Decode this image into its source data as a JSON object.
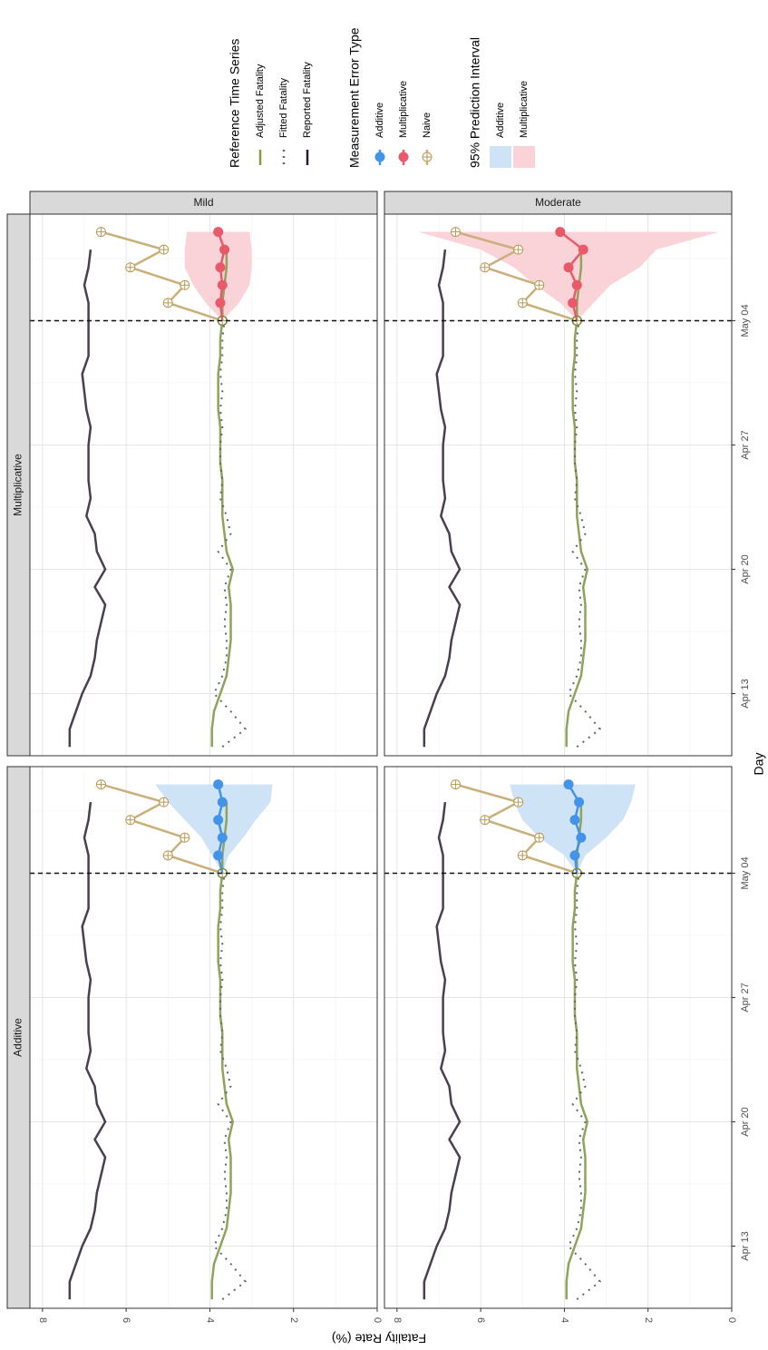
{
  "chart_data": {
    "type": "line",
    "orientation": "rotated-90-clockwise",
    "xlabel": "Day",
    "ylabel": "Fatality Rate (%)",
    "ylim": [
      0,
      8.3
    ],
    "yticks": [
      0,
      2,
      4,
      6,
      8
    ],
    "x_ticks": [
      {
        "label": "Apr 13",
        "day": 3
      },
      {
        "label": "Apr 20",
        "day": 10
      },
      {
        "label": "Apr 27",
        "day": 17
      },
      {
        "label": "May 04",
        "day": 24
      }
    ],
    "x_range_days": [
      0,
      28
    ],
    "cutoff_day": 24,
    "cutoff_label": "May 04",
    "grid": true,
    "column_strips": [
      "Additive",
      "Multiplicative"
    ],
    "row_strips": [
      "Mild",
      "Moderate"
    ],
    "legend": {
      "reference_title": "Reference Time Series",
      "reference_items": [
        {
          "name": "Adjusted Fatality",
          "color": "#8a9a40"
        },
        {
          "name": "Fitted Fatality",
          "color": "#5a6678"
        },
        {
          "name": "Reported Fatality",
          "color": "#2a1a2a"
        }
      ],
      "error_title": "Measurement Error Type",
      "error_items": [
        {
          "name": "Additive",
          "color": "#4393e8"
        },
        {
          "name": "Multiplicative",
          "color": "#e85a6a"
        },
        {
          "name": "Naive",
          "color": "#b89a58"
        }
      ],
      "interval_title": "95% Prediction Interval",
      "interval_items": [
        {
          "name": "Additive",
          "color": "#cfe3f7"
        },
        {
          "name": "Multiplicative",
          "color": "#f9d3d8"
        }
      ]
    },
    "series_shared": {
      "reported": {
        "x": [
          0,
          1,
          2,
          3,
          4,
          5,
          6,
          7,
          8,
          9,
          10,
          11,
          12,
          13,
          14,
          15,
          16,
          17,
          18,
          19,
          20,
          21,
          22,
          23,
          24,
          25,
          26,
          27,
          28
        ],
        "y": [
          7.35,
          7.35,
          7.2,
          7.05,
          6.85,
          6.75,
          6.7,
          6.6,
          6.5,
          6.75,
          6.5,
          6.7,
          6.75,
          6.95,
          6.85,
          6.9,
          6.9,
          6.9,
          6.85,
          6.95,
          7.0,
          7.05,
          6.9,
          6.9,
          6.9,
          6.9,
          7.0,
          6.9,
          6.85
        ]
      },
      "adjusted": {
        "x": [
          0,
          1,
          2,
          3,
          4,
          5,
          6,
          7,
          8,
          9,
          10,
          11,
          12,
          13,
          14,
          15,
          16,
          17,
          18,
          19,
          20,
          21,
          22,
          23,
          24,
          25,
          26,
          27,
          28
        ],
        "y": [
          3.95,
          3.95,
          3.9,
          3.75,
          3.6,
          3.55,
          3.5,
          3.5,
          3.5,
          3.55,
          3.45,
          3.6,
          3.65,
          3.7,
          3.7,
          3.7,
          3.75,
          3.75,
          3.75,
          3.8,
          3.8,
          3.8,
          3.75,
          3.75,
          3.7,
          3.7,
          3.65,
          3.6,
          3.6
        ]
      },
      "fitted": {
        "x": [
          0,
          1,
          2,
          3,
          4,
          5,
          6,
          7,
          8,
          9,
          10,
          11,
          12,
          13,
          14,
          15,
          16,
          17,
          18,
          19,
          20,
          21,
          22,
          23,
          24
        ],
        "y": [
          3.7,
          3.15,
          3.5,
          3.9,
          3.7,
          3.6,
          3.6,
          3.65,
          3.6,
          3.65,
          3.5,
          3.8,
          3.5,
          3.6,
          3.75,
          3.7,
          3.75,
          3.75,
          3.7,
          3.75,
          3.7,
          3.75,
          3.7,
          3.7,
          3.65
        ]
      },
      "naive": {
        "x": [
          24,
          25,
          26,
          27,
          28
        ],
        "y": [
          3.7,
          5.0,
          4.6,
          5.9,
          5.1
        ]
      },
      "naive_tail": {
        "x": [
          28
        ],
        "y": [
          6.6
        ]
      }
    },
    "panels": [
      {
        "col": "Additive",
        "row": "Mild",
        "color": "#4393e8",
        "band": "#cfe3f7",
        "forecast": {
          "x": [
            24,
            25,
            26,
            27,
            28,
            29
          ],
          "y": [
            3.7,
            3.8,
            3.7,
            3.8,
            3.7,
            3.8
          ]
        },
        "band_upper": [
          3.7,
          3.55,
          3.2,
          2.9,
          2.55,
          2.5
        ],
        "band_lower": [
          3.7,
          3.95,
          4.2,
          4.6,
          5.0,
          5.3
        ]
      },
      {
        "col": "Multiplicative",
        "row": "Mild",
        "color": "#e85a6a",
        "band": "#f9d3d8",
        "forecast": {
          "x": [
            24,
            25,
            26,
            27,
            28,
            29
          ],
          "y": [
            3.7,
            3.75,
            3.7,
            3.75,
            3.65,
            3.8
          ]
        },
        "band_upper": [
          3.7,
          3.3,
          3.05,
          3.0,
          3.0,
          3.05
        ],
        "band_lower": [
          3.7,
          4.1,
          4.4,
          4.6,
          4.6,
          4.55
        ]
      },
      {
        "col": "Additive",
        "row": "Moderate",
        "color": "#4393e8",
        "band": "#cfe3f7",
        "forecast": {
          "x": [
            24,
            25,
            26,
            27,
            28,
            29
          ],
          "y": [
            3.7,
            3.75,
            3.6,
            3.75,
            3.65,
            3.9
          ]
        },
        "band_upper": [
          3.7,
          3.5,
          3.0,
          2.6,
          2.4,
          2.3
        ],
        "band_lower": [
          3.7,
          4.0,
          4.6,
          5.0,
          5.2,
          5.3
        ]
      },
      {
        "col": "Multiplicative",
        "row": "Moderate",
        "color": "#e85a6a",
        "band": "#f9d3d8",
        "forecast": {
          "x": [
            24,
            25,
            26,
            27,
            28,
            29
          ],
          "y": [
            3.7,
            3.8,
            3.7,
            3.9,
            3.55,
            4.1
          ]
        },
        "band_upper": [
          3.7,
          3.3,
          2.9,
          2.2,
          1.8,
          0.3
        ],
        "band_lower": [
          3.7,
          4.1,
          4.7,
          5.2,
          6.0,
          7.5
        ]
      }
    ]
  }
}
